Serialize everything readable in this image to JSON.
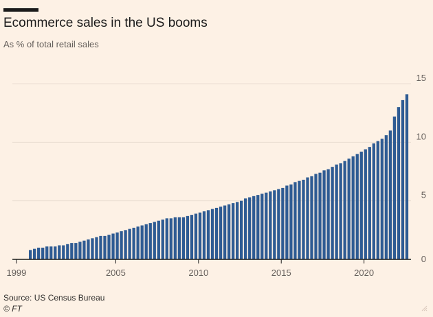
{
  "header": {
    "title": "Ecommerce sales in the US booms",
    "subtitle": "As % of total retail sales"
  },
  "footer": {
    "source": "Source: US Census Bureau",
    "copyright": "© FT"
  },
  "colors": {
    "background": "#fdf1e5",
    "bar": "#2e5b93",
    "grid": "#eaddd2",
    "baseline": "#1a1a1a",
    "axis_text": "#66605c"
  },
  "chart_data": {
    "type": "bar",
    "title": "Ecommerce sales in the US booms",
    "subtitle": "As % of total retail sales",
    "xlabel": "",
    "ylabel": "",
    "frequency": "quarterly",
    "first_period": "1999 Q4",
    "ylim": [
      0,
      15
    ],
    "yticks": [
      0,
      5,
      10,
      15
    ],
    "y_axis_position": "right",
    "grid": true,
    "xticks": [
      "1999",
      "2005",
      "2010",
      "2015",
      "2020"
    ],
    "values": [
      0.8,
      0.9,
      1.0,
      1.0,
      1.1,
      1.1,
      1.1,
      1.2,
      1.2,
      1.3,
      1.4,
      1.4,
      1.5,
      1.6,
      1.7,
      1.8,
      1.9,
      2.0,
      2.0,
      2.1,
      2.2,
      2.3,
      2.4,
      2.5,
      2.6,
      2.7,
      2.8,
      2.9,
      3.0,
      3.1,
      3.2,
      3.3,
      3.4,
      3.5,
      3.5,
      3.6,
      3.6,
      3.6,
      3.7,
      3.8,
      3.9,
      4.0,
      4.1,
      4.2,
      4.3,
      4.4,
      4.5,
      4.6,
      4.7,
      4.8,
      4.9,
      5.0,
      5.2,
      5.3,
      5.4,
      5.5,
      5.6,
      5.7,
      5.8,
      5.9,
      6.0,
      6.1,
      6.3,
      6.4,
      6.6,
      6.7,
      6.8,
      7.0,
      7.1,
      7.3,
      7.4,
      7.6,
      7.7,
      7.9,
      8.1,
      8.2,
      8.4,
      8.6,
      8.8,
      9.0,
      9.2,
      9.4,
      9.6,
      9.9,
      10.1,
      10.3,
      10.6,
      11.0,
      12.2,
      13.0,
      13.6,
      14.1
    ]
  }
}
